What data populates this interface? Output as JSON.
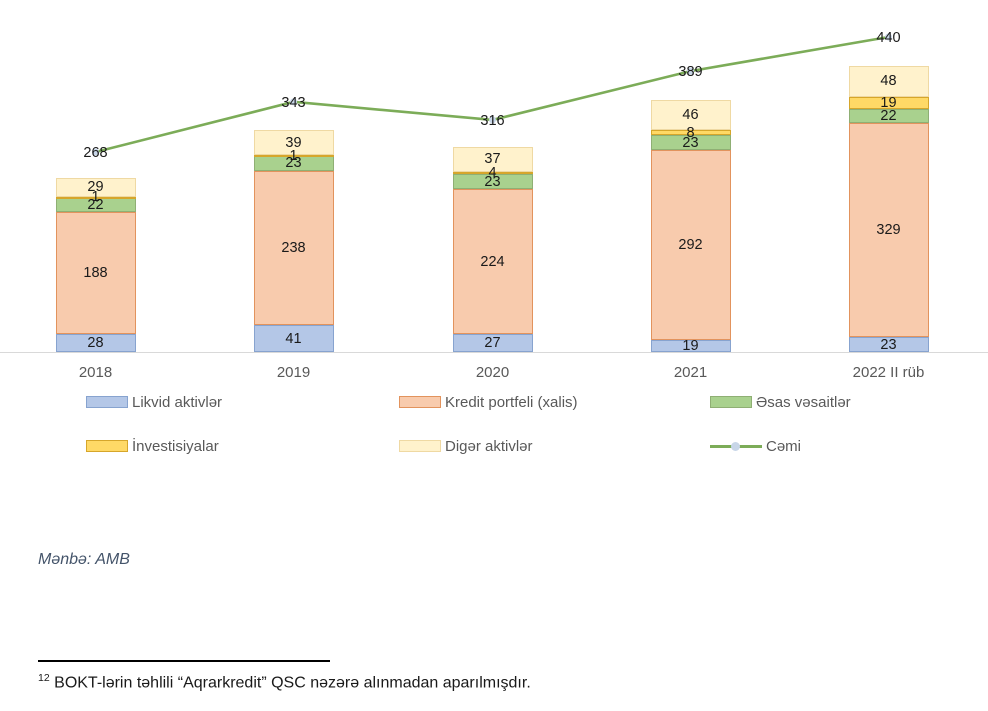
{
  "chart_data": {
    "type": "bar",
    "subtype": "stacked-bar-with-line",
    "categories": [
      "2018",
      "2019",
      "2020",
      "2021",
      "2022 II rüb"
    ],
    "series": [
      {
        "name": "Likvid aktivlər",
        "values": [
          28,
          41,
          27,
          19,
          23
        ],
        "fill": "#B4C7E7",
        "border": "#87A3CF"
      },
      {
        "name": "Kredit portfeli (xalis)",
        "values": [
          188,
          238,
          224,
          292,
          329
        ],
        "fill": "#F8CBAD",
        "border": "#E2935D"
      },
      {
        "name": "Əsas vəsaitlər",
        "values": [
          22,
          23,
          23,
          23,
          22
        ],
        "fill": "#A9D18E",
        "border": "#8FAF74"
      },
      {
        "name": "İnvestisiyalar",
        "values": [
          1,
          1,
          4,
          8,
          19
        ],
        "fill": "#FFD966",
        "border": "#D6A62B"
      },
      {
        "name": "Digər aktivlər",
        "values": [
          29,
          39,
          37,
          46,
          48
        ],
        "fill": "#FFF2CC",
        "border": "#EFD9A3"
      }
    ],
    "line_series": {
      "name": "Cəmi",
      "values": [
        268,
        343,
        316,
        389,
        440
      ],
      "color": "#7CAC58",
      "marker_color": "#C8D6E8"
    },
    "legend_position": "bottom",
    "grid": false,
    "axis_line_color": "#D9D9D9",
    "label_color": "#595959"
  },
  "source_note": "Mənbə: AMB",
  "footnote": {
    "marker": "12",
    "text": "BOKT-lərin təhlili “Aqrarkredit” QSC nəzərə alınmadan aparılmışdır."
  }
}
